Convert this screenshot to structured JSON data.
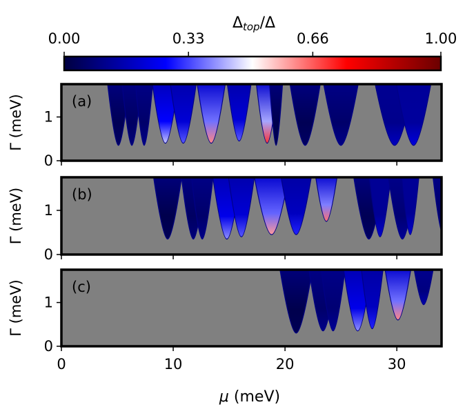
{
  "chart_data": {
    "type": "heatmap",
    "colorbar": {
      "title_main": "Δ",
      "title_sub": "top",
      "title_tail": "/Δ",
      "ticks": [
        "0.00",
        "0.33",
        "0.66",
        "1.00"
      ],
      "tick_values": [
        0.0,
        0.33,
        0.66,
        1.0
      ],
      "range": [
        0,
        1
      ],
      "colormap": [
        "#000040",
        "#0000ff",
        "#ffffff",
        "#ff0000",
        "#6b0000"
      ]
    },
    "background_color": "#808080",
    "xlabel_symbol": "μ",
    "xlabel_unit": " (meV)",
    "xlim": [
      0,
      34
    ],
    "x_ticks": [
      0,
      10,
      20,
      30
    ],
    "x_tick_labels": [
      "0",
      "10",
      "20",
      "30"
    ],
    "ylabel": "Γ (meV)",
    "ylim": [
      0,
      1.75
    ],
    "y_ticks": [
      0,
      1
    ],
    "y_tick_labels": [
      "0",
      "1"
    ],
    "panels": [
      {
        "label": "(a)",
        "lobes": [
          {
            "c": 5.1,
            "w": 1.0,
            "y0": 0.35,
            "v": 0.05
          },
          {
            "c": 6.3,
            "w": 0.9,
            "y0": 0.35,
            "v": 0.08
          },
          {
            "c": 7.4,
            "w": 0.8,
            "y0": 0.35,
            "v": 0.1
          },
          {
            "c": 9.3,
            "w": 1.2,
            "y0": 0.4,
            "v": 0.45
          },
          {
            "c": 10.9,
            "w": 1.2,
            "y0": 0.4,
            "v": 0.35
          },
          {
            "c": 13.4,
            "w": 1.3,
            "y0": 0.4,
            "v": 0.62
          },
          {
            "c": 15.9,
            "w": 1.1,
            "y0": 0.45,
            "v": 0.35
          },
          {
            "c": 18.4,
            "w": 1.0,
            "y0": 0.4,
            "v": 0.7
          },
          {
            "c": 19.2,
            "w": 0.6,
            "y0": 0.35,
            "v": 0.03
          },
          {
            "c": 21.8,
            "w": 1.4,
            "y0": 0.35,
            "v": 0.05
          },
          {
            "c": 25.0,
            "w": 1.6,
            "y0": 0.35,
            "v": 0.1
          },
          {
            "c": 29.8,
            "w": 1.8,
            "y0": 0.35,
            "v": 0.18
          },
          {
            "c": 31.5,
            "w": 1.6,
            "y0": 0.35,
            "v": 0.22
          }
        ]
      },
      {
        "label": "(b)",
        "lobes": [
          {
            "c": 9.5,
            "w": 1.3,
            "y0": 0.35,
            "v": 0.03
          },
          {
            "c": 11.8,
            "w": 1.1,
            "y0": 0.35,
            "v": 0.08
          },
          {
            "c": 12.6,
            "w": 1.0,
            "y0": 0.35,
            "v": 0.1
          },
          {
            "c": 14.8,
            "w": 1.3,
            "y0": 0.35,
            "v": 0.4
          },
          {
            "c": 16.1,
            "w": 1.2,
            "y0": 0.4,
            "v": 0.35
          },
          {
            "c": 18.8,
            "w": 1.6,
            "y0": 0.45,
            "v": 0.6
          },
          {
            "c": 21.0,
            "w": 1.4,
            "y0": 0.45,
            "v": 0.3
          },
          {
            "c": 23.7,
            "w": 1.0,
            "y0": 0.75,
            "v": 0.64
          },
          {
            "c": 27.5,
            "w": 1.4,
            "y0": 0.35,
            "v": 0.05
          },
          {
            "c": 28.5,
            "w": 1.0,
            "y0": 0.4,
            "v": 0.2
          },
          {
            "c": 30.5,
            "w": 1.3,
            "y0": 0.35,
            "v": 0.12
          },
          {
            "c": 31.2,
            "w": 0.8,
            "y0": 0.45,
            "v": 0.2
          },
          {
            "c": 34.2,
            "w": 1.0,
            "y0": 0.4,
            "v": 0.1
          }
        ]
      },
      {
        "label": "(c)",
        "lobes": [
          {
            "c": 21.0,
            "w": 1.5,
            "y0": 0.3,
            "v": 0.03
          },
          {
            "c": 23.4,
            "w": 1.3,
            "y0": 0.35,
            "v": 0.1
          },
          {
            "c": 24.3,
            "w": 1.1,
            "y0": 0.35,
            "v": 0.12
          },
          {
            "c": 26.5,
            "w": 1.3,
            "y0": 0.35,
            "v": 0.4
          },
          {
            "c": 27.8,
            "w": 1.0,
            "y0": 0.4,
            "v": 0.3
          },
          {
            "c": 30.1,
            "w": 1.2,
            "y0": 0.6,
            "v": 0.62
          },
          {
            "c": 32.4,
            "w": 0.9,
            "y0": 0.95,
            "v": 0.15
          }
        ]
      }
    ]
  }
}
